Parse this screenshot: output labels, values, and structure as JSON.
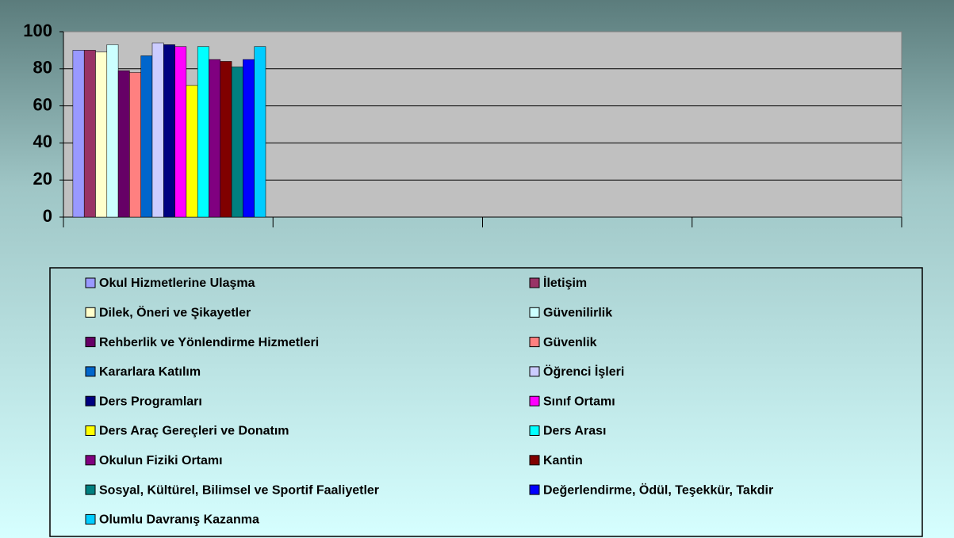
{
  "chart_data": {
    "type": "bar",
    "categories": [
      null,
      null,
      null,
      null
    ],
    "ylim": [
      0,
      100
    ],
    "yticks": [
      0,
      20,
      40,
      60,
      80,
      100
    ],
    "grid": true,
    "legend": "bottom",
    "series": [
      {
        "name": "Okul Hizmetlerine Ulaşma",
        "color": "#9999ff",
        "values": [
          90,
          null,
          null,
          null
        ]
      },
      {
        "name": "İletişim",
        "color": "#993366",
        "values": [
          90,
          null,
          null,
          null
        ]
      },
      {
        "name": "Dilek, Öneri ve Şikayetler",
        "color": "#ffffcc",
        "values": [
          89,
          null,
          null,
          null
        ]
      },
      {
        "name": "Güvenilirlik",
        "color": "#ccffff",
        "values": [
          93,
          null,
          null,
          null
        ]
      },
      {
        "name": "Rehberlik ve Yönlendirme Hizmetleri",
        "color": "#660066",
        "values": [
          79,
          null,
          null,
          null
        ]
      },
      {
        "name": "Güvenlik",
        "color": "#ff8080",
        "values": [
          78,
          null,
          null,
          null
        ]
      },
      {
        "name": "Kararlara Katılım",
        "color": "#0066cc",
        "values": [
          87,
          null,
          null,
          null
        ]
      },
      {
        "name": "Öğrenci İşleri",
        "color": "#ccccff",
        "values": [
          94,
          null,
          null,
          null
        ]
      },
      {
        "name": "Ders Programları",
        "color": "#000080",
        "values": [
          93,
          null,
          null,
          null
        ]
      },
      {
        "name": "Sınıf Ortamı",
        "color": "#ff00ff",
        "values": [
          92,
          null,
          null,
          null
        ]
      },
      {
        "name": "Ders Araç Gereçleri ve Donatım",
        "color": "#ffff00",
        "values": [
          71,
          null,
          null,
          null
        ]
      },
      {
        "name": "Ders Arası",
        "color": "#00ffff",
        "values": [
          92,
          null,
          null,
          null
        ]
      },
      {
        "name": "Okulun Fiziki Ortamı",
        "color": "#800080",
        "values": [
          85,
          null,
          null,
          null
        ]
      },
      {
        "name": "Kantin",
        "color": "#800000",
        "values": [
          84,
          null,
          null,
          null
        ]
      },
      {
        "name": "Sosyal, Kültürel, Bilimsel ve Sportif Faaliyetler",
        "color": "#008080",
        "values": [
          81,
          null,
          null,
          null
        ]
      },
      {
        "name": "Değerlendirme, Ödül, Teşekkür, Takdir",
        "color": "#0000ff",
        "values": [
          85,
          null,
          null,
          null
        ]
      },
      {
        "name": "Olumlu Davranış Kazanma",
        "color": "#00ccff",
        "values": [
          92,
          null,
          null,
          null
        ]
      }
    ]
  }
}
